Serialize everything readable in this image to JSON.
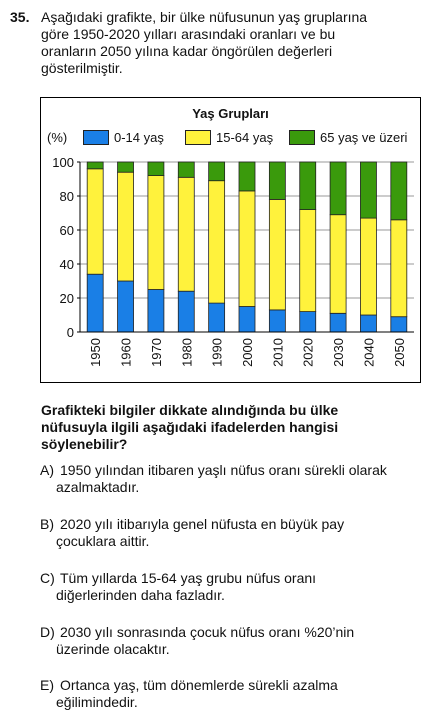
{
  "question": {
    "number": "35.",
    "stem_lines": [
      "Aşağıdaki grafikte, bir ülke nüfusunun yaş gruplarına",
      "göre 1950-2020 yılları arasındaki oranları ve bu",
      "oranların 2050 yılına kadar öngörülen değerleri",
      "gösterilmiştir."
    ],
    "prompt_lines": [
      "Grafikteki bilgiler dikkate alındığında bu ülke",
      "nüfusuyla ilgili aşağıdaki ifadelerden hangisi",
      "söylenebilir?"
    ],
    "options": [
      {
        "letter": "A)",
        "line1": "1950 yılından itibaren yaşlı nüfus oranı sürekli olarak",
        "line2": "azalmaktadır."
      },
      {
        "letter": "B)",
        "line1": "2020 yılı itibarıyla genel nüfusta en büyük pay",
        "line2": "çocuklara aittir."
      },
      {
        "letter": "C)",
        "line1": "Tüm yıllarda 15-64 yaş grubu nüfus oranı",
        "line2": "diğerlerinden daha fazladır."
      },
      {
        "letter": "D)",
        "line1": "2030 yılı sonrasında çocuk nüfus oranı %20’nin",
        "line2": "üzerinde olacaktır."
      },
      {
        "letter": "E)",
        "line1": "Ortanca yaş, tüm dönemlerde sürekli azalma",
        "line2": "eğilimindedir."
      }
    ]
  },
  "chart_data": {
    "type": "bar",
    "stacked": true,
    "title": "Yaş Grupları",
    "unit_label": "(%)",
    "categories": [
      "1950",
      "1960",
      "1970",
      "1980",
      "1990",
      "2000",
      "2010",
      "2020",
      "2030",
      "2040",
      "2050"
    ],
    "series": [
      {
        "name": "0-14 yaş",
        "color": "#1a7fe6",
        "values": [
          34,
          30,
          25,
          24,
          17,
          15,
          13,
          12,
          11,
          10,
          9
        ]
      },
      {
        "name": "15-64 yaş",
        "color": "#fff23c",
        "values": [
          62,
          64,
          67,
          67,
          72,
          68,
          65,
          60,
          58,
          57,
          57
        ]
      },
      {
        "name": "65 yaş ve üzeri",
        "color": "#3a9a0c",
        "values": [
          4,
          6,
          8,
          9,
          11,
          17,
          22,
          28,
          31,
          33,
          34
        ]
      }
    ],
    "ylim": [
      0,
      100
    ],
    "yticks": [
      "0",
      "20",
      "40",
      "60",
      "80",
      "100"
    ],
    "legend_position": "top"
  }
}
